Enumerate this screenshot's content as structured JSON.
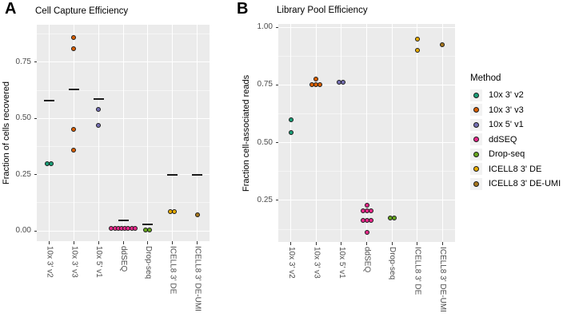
{
  "colors": {
    "panel_bg": "#EBEBEB",
    "grid_major": "#FFFFFF",
    "grid_minor": "#F5F5F5",
    "tick": "#333333",
    "axis_text": "#4D4D4D",
    "text": "#000000",
    "mean_line": "#1A1A1A",
    "point_outline": "#1A1A1A",
    "legend_key_bg": "#F2F2F2",
    "method_colors": {
      "10x 3' v2": "#1B9E77",
      "10x 3' v3": "#D95F02",
      "10x 5' v1": "#7570B3",
      "ddSEQ": "#E7298A",
      "Drop-seq": "#66A61E",
      "ICELL8 3' DE": "#E6AB02",
      "ICELL8 3' DE-UMI": "#A6761D"
    }
  },
  "legend": {
    "title": "Method",
    "position": "right",
    "items": [
      {
        "label": "10x 3' v2",
        "color": "#1B9E77"
      },
      {
        "label": "10x 3' v3",
        "color": "#D95F02"
      },
      {
        "label": "10x 5' v1",
        "color": "#7570B3"
      },
      {
        "label": "ddSEQ",
        "color": "#E7298A"
      },
      {
        "label": "Drop-seq",
        "color": "#66A61E"
      },
      {
        "label": "ICELL8 3' DE",
        "color": "#E6AB02"
      },
      {
        "label": "ICELL8 3' DE-UMI",
        "color": "#A6761D"
      }
    ]
  },
  "chart_data": [
    {
      "type": "scatter",
      "panel_label": "A",
      "title": "Cell Capture Efficiency",
      "xlabel": "",
      "ylabel": "Fraction of cells recovered",
      "grid": true,
      "categories": [
        "10x 3' v2",
        "10x 3' v3",
        "10x 5' v1",
        "ddSEQ",
        "Drop-seq",
        "ICELL8 3' DE",
        "ICELL8 3' DE-UMI"
      ],
      "yticks": [
        0.0,
        0.25,
        0.5,
        0.75
      ],
      "ytick_labels": [
        "0.00",
        "0.25",
        "0.50",
        "0.75"
      ],
      "yminor": [
        0.125,
        0.375,
        0.625,
        0.875
      ],
      "ylim": [
        -0.046,
        0.917
      ],
      "series": [
        {
          "name": "10x 3' v2",
          "color": "#1B9E77",
          "values": [
            0.3,
            0.3
          ],
          "mean_line": 0.58
        },
        {
          "name": "10x 3' v3",
          "color": "#D95F02",
          "values": [
            0.86,
            0.81,
            0.45,
            0.36
          ],
          "mean_line": 0.63
        },
        {
          "name": "10x 5' v1",
          "color": "#7570B3",
          "values": [
            0.54,
            0.47
          ],
          "mean_line": 0.585
        },
        {
          "name": "ddSEQ",
          "color": "#E7298A",
          "values": [
            0.01,
            0.01,
            0.01,
            0.01,
            0.01,
            0.01,
            0.01,
            0.01
          ],
          "mean_line": 0.048
        },
        {
          "name": "Drop-seq",
          "color": "#66A61E",
          "values": [
            0.005,
            0.005
          ],
          "mean_line": 0.028
        },
        {
          "name": "ICELL8 3' DE",
          "color": "#E6AB02",
          "values": [
            0.085,
            0.085
          ],
          "mean_line": 0.25
        },
        {
          "name": "ICELL8 3' DE-UMI",
          "color": "#A6761D",
          "values": [
            0.07
          ],
          "mean_line": 0.25
        }
      ]
    },
    {
      "type": "scatter",
      "panel_label": "B",
      "title": "Library Pool Efficiency",
      "xlabel": "",
      "ylabel": "Fraction cell-associated reads",
      "grid": true,
      "categories": [
        "10x 3' v2",
        "10x 3' v3",
        "10x 5' v1",
        "ddSEQ",
        "Drop-seq",
        "ICELL8 3' DE",
        "ICELL8 3' DE-UMI"
      ],
      "yticks": [
        0.25,
        0.5,
        0.75,
        1.0
      ],
      "ytick_labels": [
        "0.25",
        "0.50",
        "0.75",
        "1.00"
      ],
      "yminor": [
        0.125,
        0.375,
        0.625,
        0.875
      ],
      "ylim": [
        0.07,
        1.014
      ],
      "series": [
        {
          "name": "10x 3' v2",
          "color": "#1B9E77",
          "values": [
            0.6,
            0.545
          ]
        },
        {
          "name": "10x 3' v3",
          "color": "#D95F02",
          "values": [
            0.775,
            0.75,
            0.75,
            0.75
          ]
        },
        {
          "name": "10x 5' v1",
          "color": "#7570B3",
          "values": [
            0.76,
            0.76
          ]
        },
        {
          "name": "ddSEQ",
          "color": "#E7298A",
          "values": [
            0.23,
            0.205,
            0.205,
            0.205,
            0.165,
            0.165,
            0.165,
            0.11
          ]
        },
        {
          "name": "Drop-seq",
          "color": "#66A61E",
          "values": [
            0.175,
            0.175
          ]
        },
        {
          "name": "ICELL8 3' DE",
          "color": "#E6AB02",
          "values": [
            0.95,
            0.9
          ]
        },
        {
          "name": "ICELL8 3' DE-UMI",
          "color": "#A6761D",
          "values": [
            0.925
          ]
        }
      ]
    }
  ]
}
